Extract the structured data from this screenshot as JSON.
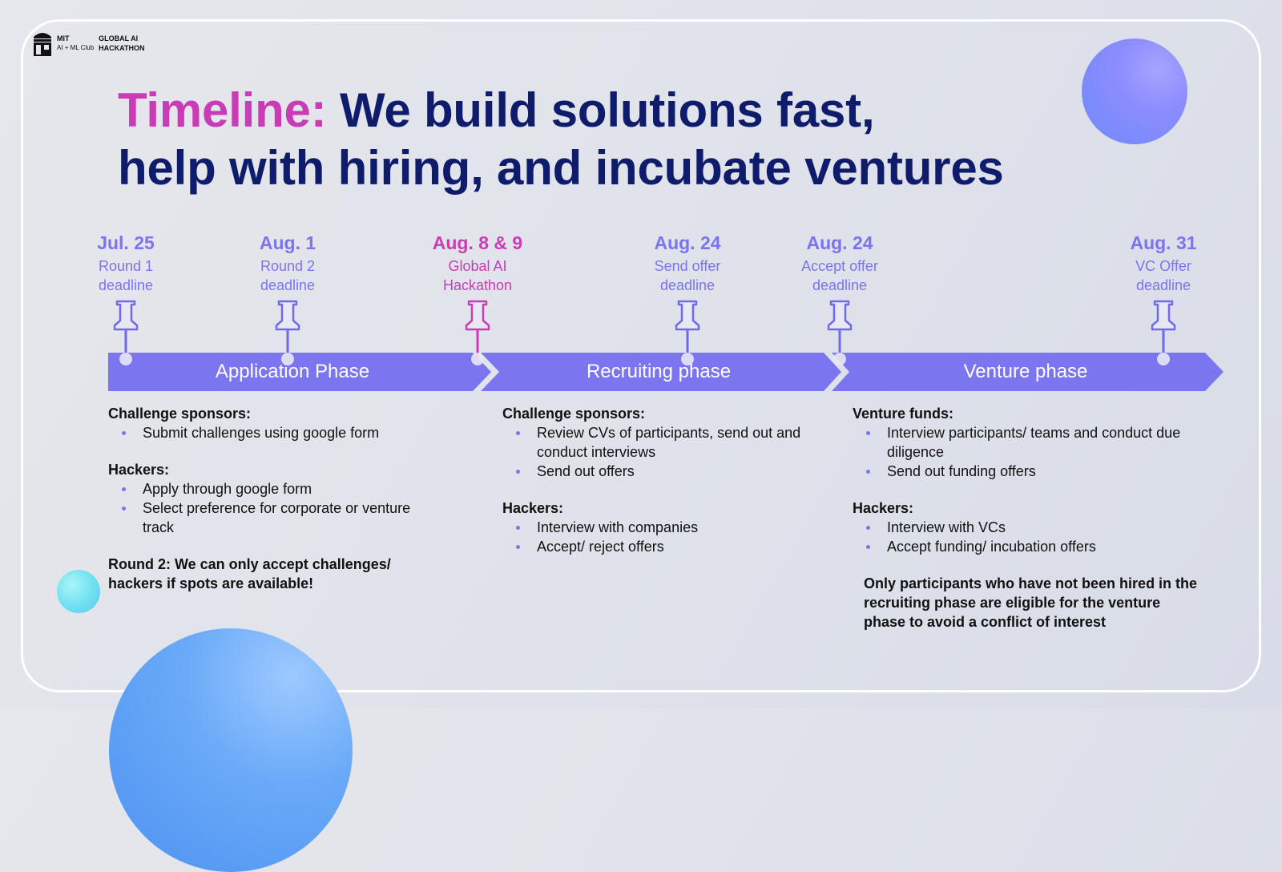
{
  "logo": {
    "org_line1": "MIT",
    "org_line2": "AI + ML Club",
    "event_line1": "GLOBAL AI",
    "event_line2": "HACKATHON"
  },
  "title": {
    "highlight": "Timeline:",
    "line1_rest": "We build solutions fast,",
    "line2": "help with hiring, and incubate ventures"
  },
  "colors": {
    "navy": "#0f1b6b",
    "pink": "#c93cb6",
    "purple": "#7a74ee",
    "band": "#7b76f0"
  },
  "milestones": [
    {
      "date": "Jul. 25",
      "label1": "Round 1",
      "label2": "deadline"
    },
    {
      "date": "Aug. 1",
      "label1": "Round 2",
      "label2": "deadline"
    },
    {
      "date": "Aug. 8 & 9",
      "label1": "Global AI",
      "label2": "Hackathon"
    },
    {
      "date": "Aug. 24",
      "label1": "Send offer",
      "label2": "deadline"
    },
    {
      "date": "Aug. 24",
      "label1": "Accept offer",
      "label2": "deadline"
    },
    {
      "date": "Aug. 31",
      "label1": "VC Offer",
      "label2": "deadline"
    }
  ],
  "phases": [
    "Application Phase",
    "Recruiting phase",
    "Venture phase"
  ],
  "columns": {
    "application": {
      "sponsors_heading": "Challenge sponsors:",
      "sponsors_items": [
        "Submit challenges using google form"
      ],
      "hackers_heading": "Hackers:",
      "hackers_items": [
        "Apply through google form",
        "Select preference for corporate or venture track"
      ],
      "note": "Round 2: We can only accept challenges/ hackers if spots are available!"
    },
    "recruiting": {
      "sponsors_heading": "Challenge sponsors:",
      "sponsors_items": [
        "Review CVs of participants, send out and conduct interviews",
        "Send out offers"
      ],
      "hackers_heading": "Hackers:",
      "hackers_items": [
        "Interview with companies",
        "Accept/ reject offers"
      ]
    },
    "venture": {
      "funds_heading": "Venture funds:",
      "funds_items": [
        "Interview participants/ teams and conduct due diligence",
        "Send out funding offers"
      ],
      "hackers_heading": "Hackers:",
      "hackers_items": [
        "Interview with VCs",
        "Accept funding/ incubation offers"
      ],
      "note": "Only participants who have not been hired in the recruiting phase are eligible for the venture phase to avoid a conflict of interest"
    }
  }
}
